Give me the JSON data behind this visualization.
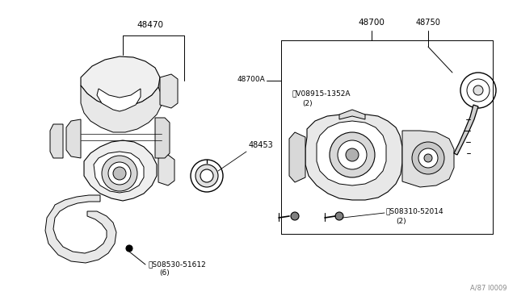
{
  "bg_color": "#ffffff",
  "border_color": "#000000",
  "line_color": "#000000",
  "text_color": "#000000",
  "figure_size": [
    6.4,
    3.72
  ],
  "dpi": 100,
  "watermark": "A/87 I0009",
  "label_48470": "48470",
  "label_48700": "48700",
  "label_48700A": "48700A",
  "label_48750": "48750",
  "label_48453": "48453",
  "label_screw1": "S08530-51612",
  "label_screw1_sub": "(6)",
  "label_screw2": "S08310-52014",
  "label_screw2_sub": "(2)",
  "label_valve": "V08915-1352A",
  "label_valve_sub": "(2)",
  "fs_label": 7.0,
  "fs_small": 6.5,
  "fs_watermark": 6.0
}
